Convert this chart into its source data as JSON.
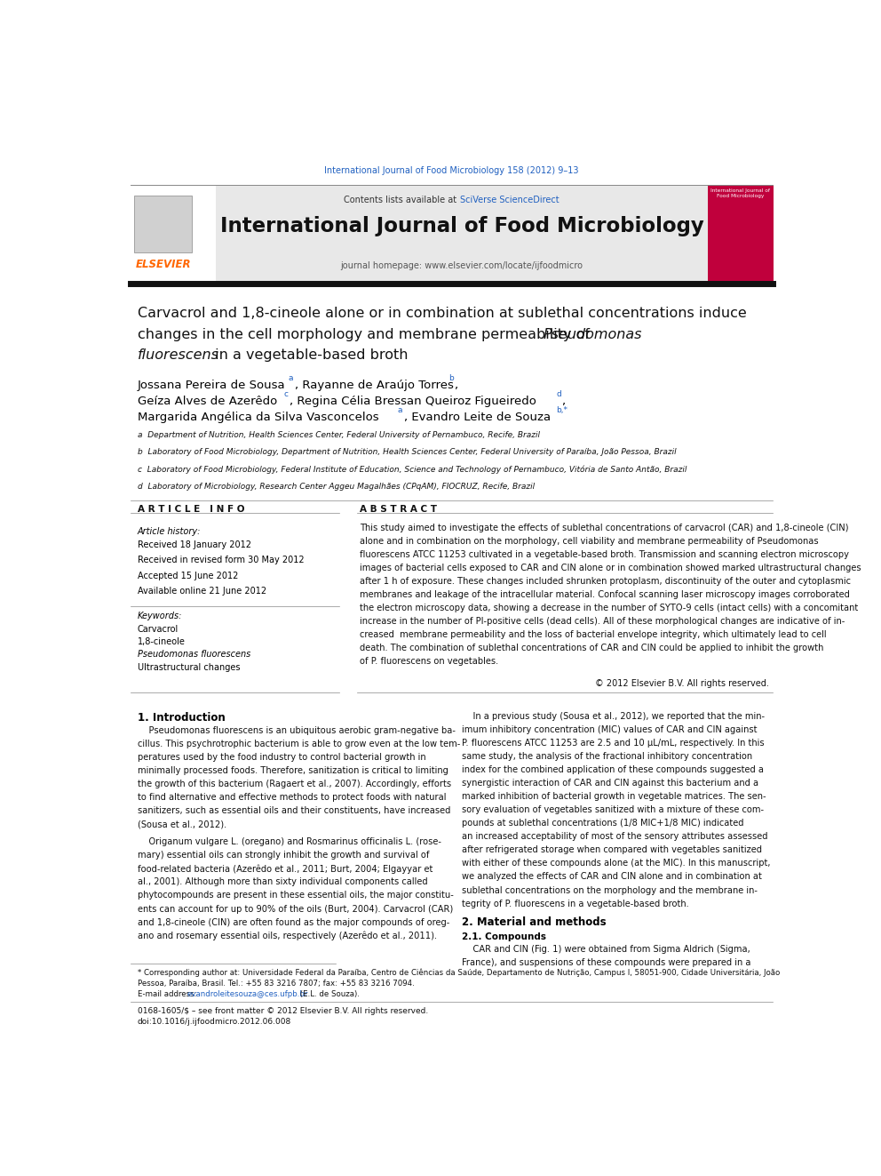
{
  "page_width": 9.92,
  "page_height": 13.23,
  "bg_color": "#ffffff",
  "top_link_text": "International Journal of Food Microbiology 158 (2012) 9–13",
  "top_link_color": "#2060c0",
  "header_bg_color": "#e8e8e8",
  "header_journal_title": "International Journal of Food Microbiology",
  "header_contents_text": "Contents lists available at ",
  "header_sciverse_text": "SciVerse ScienceDirect",
  "header_homepage_text": "journal homepage: www.elsevier.com/locate/ijfoodmicro",
  "elsevier_text": "ELSEVIER",
  "elsevier_color": "#ff6600",
  "sidebar_bg_color": "#c0003c",
  "article_title_line1": "Carvacrol and 1,8-cineole alone or in combination at sublethal concentrations induce",
  "article_title_line2": "changes in the cell morphology and membrane permeability of ",
  "article_title_italic": "Pseudomonas",
  "article_title_line3": "fluorescens",
  "article_title_line3b": " in a vegetable-based broth",
  "authors_line1": "Jossana Pereira de Sousa",
  "authors_sup1": "a",
  "authors_line1b": ", Rayanne de Araújo Torres",
  "authors_sup2": "b",
  "authors_line2": "Geíza Alves de Azerêdo",
  "authors_sup3": "c",
  "authors_line2b": ", Regina Célia Bressan Queiroz Figueiredo",
  "authors_sup4": "d",
  "authors_line3": "Margarida Angélica da Silva Vasconcelos",
  "authors_sup5": "a",
  "authors_line3b": ", Evandro Leite de Souza",
  "authors_sup6": "b,*",
  "affil_a": "a  Department of Nutrition, Health Sciences Center, Federal University of Pernambuco, Recife, Brazil",
  "affil_b": "b  Laboratory of Food Microbiology, Department of Nutrition, Health Sciences Center, Federal University of Paraíba, João Pessoa, Brazil",
  "affil_c": "c  Laboratory of Food Microbiology, Federal Institute of Education, Science and Technology of Pernambuco, Vitória de Santo Antão, Brazil",
  "affil_d": "d  Laboratory of Microbiology, Research Center Aggeu Magalhães (CPqAM), FIOCRUZ, Recife, Brazil",
  "article_info_header": "A R T I C L E   I N F O",
  "abstract_header": "A B S T R A C T",
  "article_history_label": "Article history:",
  "received_text": "Received 18 January 2012",
  "revised_text": "Received in revised form 30 May 2012",
  "accepted_text": "Accepted 15 June 2012",
  "available_text": "Available online 21 June 2012",
  "keywords_label": "Keywords:",
  "keyword1": "Carvacrol",
  "keyword2": "1,8-cineole",
  "keyword3_italic": "Pseudomonas fluorescens",
  "keyword4": "Ultrastructural changes",
  "abstract_text": "This study aimed to investigate the effects of sublethal concentrations of carvacrol (CAR) and 1,8-cineole (CIN) alone and in combination on the morphology, cell viability and membrane permeability of Pseudomonas fluorescens ATCC 11253 cultivated in a vegetable-based broth. Transmission and scanning electron microscopy images of bacterial cells exposed to CAR and CIN alone or in combination showed marked ultrastructural changes after 1 h of exposure. These changes included shrunken protoplasm, discontinuity of the outer and cytoplasmic membranes and leakage of the intracellular material. Confocal scanning laser microscopy images corroborated the electron microscopy data, showing a decrease in the number of SYTO-9 cells (intact cells) with a concomitant increase in the number of PI-positive cells (dead cells). All of these morphological changes are indicative of increased membrane permeability and the loss of bacterial envelope integrity, which ultimately lead to cell death. The combination of sublethal concentrations of CAR and CIN could be applied to inhibit the growth of P. fluorescens on vegetables.",
  "copyright_text": "© 2012 Elsevier B.V. All rights reserved.",
  "intro_heading": "1. Introduction",
  "section2_heading": "2. Material and methods",
  "section21_heading": "2.1. Compounds",
  "section21_para": "CAR and CIN (Fig. 1) were obtained from Sigma Aldrich (Sigma,\nFrance), and suspensions of these compounds were prepared in a",
  "footer_line1": "Corresponding author at: Universidade Federal da Paraíba, Centro de Ciências da Saúde, Departamento de Nutrição, Campus I, 58051-900, Cidade Universitária, João",
  "footer_line2": "Pessoa, Paraíba, Brasil. Tel.: +55 83 3216 7807; fax: +55 83 3216 7094.",
  "footer_email_label": "E-mail address: ",
  "footer_email": "evandroleitesouza@ces.ufpb.br",
  "footer_email_name": " (E.L. de Souza).",
  "footer_issn": "0168-1605/$ – see front matter © 2012 Elsevier B.V. All rights reserved.",
  "footer_doi": "doi:10.1016/j.ijfoodmicro.2012.06.008"
}
